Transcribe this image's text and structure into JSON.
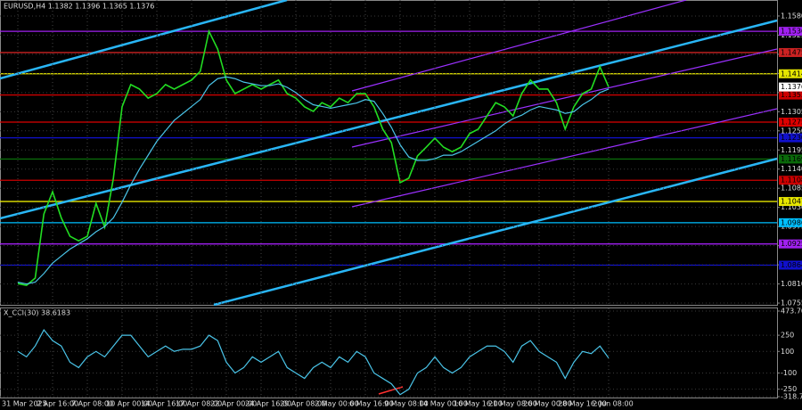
{
  "chart_data": [
    {
      "type": "line",
      "title": "EURUSD,H4  1.1382 1.1396 1.1365 1.1376",
      "categories": [
        "31 Mar 2025",
        null,
        null,
        null,
        "2 Apr 16:00",
        null,
        null,
        null,
        "7 Apr 08:00",
        null,
        null,
        null,
        "10 Apr 00:00",
        null,
        null,
        null,
        "14 Apr 16:00",
        null,
        null,
        null,
        "17 Apr 08:00",
        null,
        null,
        null,
        "22 Apr 00:00",
        null,
        null,
        null,
        "24 Apr 16:00",
        null,
        null,
        null,
        "29 Apr 08:00",
        null,
        null,
        null,
        "2 May 00:00",
        null,
        null,
        null,
        "6 May 16:00",
        null,
        null,
        null,
        "9 May 08:00",
        null,
        null,
        null,
        "14 May 00:00",
        null,
        null,
        null,
        "16 May 16:00",
        null,
        null,
        null,
        "21 May 08:00",
        null,
        null,
        null,
        "26 May 00:00",
        null,
        null,
        null,
        "28 May 16:00",
        null,
        null,
        null,
        "2 Jun 08:00"
      ],
      "series": [
        {
          "color": "#22dd22",
          "values": [
            1.0811,
            1.0806,
            1.0827,
            1.1011,
            1.1075,
            1.1,
            1.0947,
            1.0934,
            1.0947,
            1.1042,
            1.0973,
            1.1114,
            1.1319,
            1.1383,
            1.137,
            1.1344,
            1.1357,
            1.1383,
            1.137,
            1.1383,
            1.1396,
            1.1421,
            1.1536,
            1.1485,
            1.1396,
            1.1357,
            1.137,
            1.1383,
            1.137,
            1.1383,
            1.1396,
            1.1357,
            1.1344,
            1.1319,
            1.1306,
            1.1331,
            1.1319,
            1.1344,
            1.1331,
            1.1357,
            1.1357,
            1.1319,
            1.1255,
            1.1216,
            1.1101,
            1.1114,
            1.1178,
            1.1203,
            1.1229,
            1.1203,
            1.119,
            1.1203,
            1.1242,
            1.1255,
            1.1293,
            1.1331,
            1.1319,
            1.1293,
            1.1357,
            1.1396,
            1.137,
            1.137,
            1.1331,
            1.1255,
            1.1319,
            1.1357,
            1.137,
            1.1434,
            1.1376
          ]
        },
        {
          "color": "#4ac4e8",
          "values": [
            1.0815,
            1.081,
            1.0815,
            1.084,
            1.087,
            1.089,
            1.091,
            1.0925,
            1.094,
            1.096,
            1.0975,
            1.1,
            1.1045,
            1.1095,
            1.114,
            1.118,
            1.122,
            1.125,
            1.128,
            1.13,
            1.132,
            1.134,
            1.138,
            1.14,
            1.1405,
            1.14,
            1.139,
            1.1385,
            1.138,
            1.138,
            1.1385,
            1.1375,
            1.136,
            1.134,
            1.1325,
            1.132,
            1.1315,
            1.132,
            1.1325,
            1.133,
            1.134,
            1.1335,
            1.13,
            1.126,
            1.121,
            1.1175,
            1.1165,
            1.1165,
            1.117,
            1.118,
            1.118,
            1.119,
            1.1205,
            1.122,
            1.1235,
            1.125,
            1.127,
            1.1285,
            1.1295,
            1.131,
            1.132,
            1.1315,
            1.131,
            1.13,
            1.1305,
            1.1325,
            1.134,
            1.136,
            1.137
          ]
        }
      ],
      "ylim": [
        1.075,
        1.1626
      ],
      "yticks": [
        {
          "value": 1.158,
          "label": "1.1580"
        },
        {
          "value": 1.1525,
          "label": "1.1525"
        },
        {
          "value": 1.147,
          "label": "1.1470"
        },
        {
          "value": 1.1415,
          "label": "1.1415"
        },
        {
          "value": 1.136,
          "label": "1.1360"
        },
        {
          "value": 1.1305,
          "label": "1.1305"
        },
        {
          "value": 1.125,
          "label": "1.1250"
        },
        {
          "value": 1.1195,
          "label": "1.1195"
        },
        {
          "value": 1.114,
          "label": "1.1140"
        },
        {
          "value": 1.1085,
          "label": "1.1085"
        },
        {
          "value": 1.103,
          "label": "1.1030"
        },
        {
          "value": 1.0975,
          "label": "1.0975"
        },
        {
          "value": 1.092,
          "label": "1.0920"
        },
        {
          "value": 1.0865,
          "label": "1.0865"
        },
        {
          "value": 1.081,
          "label": "1.0810"
        },
        {
          "value": 1.0755,
          "label": "1.0755"
        }
      ],
      "levels": [
        {
          "value": 1.1536,
          "label": "1.1536",
          "color": "#a020f0"
        },
        {
          "value": 1.1475,
          "label": "1.1475",
          "color": "#cc2222"
        },
        {
          "value": 1.1414,
          "label": "1.1414",
          "color": "#e6e600"
        },
        {
          "value": 1.1353,
          "label": "1.1353",
          "color": "#cc0000"
        },
        {
          "value": 1.1275,
          "label": "1.1275",
          "color": "#dd0000"
        },
        {
          "value": 1.123,
          "label": "1.1230",
          "color": "#1010cc"
        },
        {
          "value": 1.1169,
          "label": "1.1169",
          "color": "#0a6a0a"
        },
        {
          "value": 1.1108,
          "label": "1.1108",
          "color": "#cc0000"
        },
        {
          "value": 1.1047,
          "label": "1.1047",
          "color": "#e6e600"
        },
        {
          "value": 1.0986,
          "label": "1.0986",
          "color": "#00bfff"
        },
        {
          "value": 1.0925,
          "label": "1.0925",
          "color": "#a020f0"
        },
        {
          "value": 1.0864,
          "label": "1.0864",
          "color": "#1010cc"
        }
      ],
      "grid": true
    },
    {
      "type": "line",
      "title": "X_CCI(30) 38.6183",
      "series": [
        {
          "color": "#4ac4e8",
          "values": [
            100,
            50,
            150,
            300,
            200,
            150,
            0,
            -50,
            50,
            100,
            50,
            150,
            250,
            250,
            150,
            50,
            100,
            150,
            100,
            120,
            120,
            150,
            250,
            200,
            0,
            -100,
            -50,
            50,
            0,
            50,
            100,
            -50,
            -100,
            -150,
            -50,
            0,
            -50,
            50,
            0,
            100,
            50,
            -100,
            -150,
            -200,
            -300,
            -250,
            -100,
            -50,
            50,
            -50,
            -100,
            -50,
            50,
            100,
            150,
            150,
            100,
            0,
            150,
            200,
            100,
            50,
            0,
            -150,
            0,
            100,
            80,
            150,
            38.6183
          ]
        }
      ],
      "ylim": [
        -318.786,
        473.707
      ],
      "yticks": [
        473.707,
        250,
        100,
        -100,
        -250,
        -318.786
      ],
      "grid": true
    }
  ]
}
